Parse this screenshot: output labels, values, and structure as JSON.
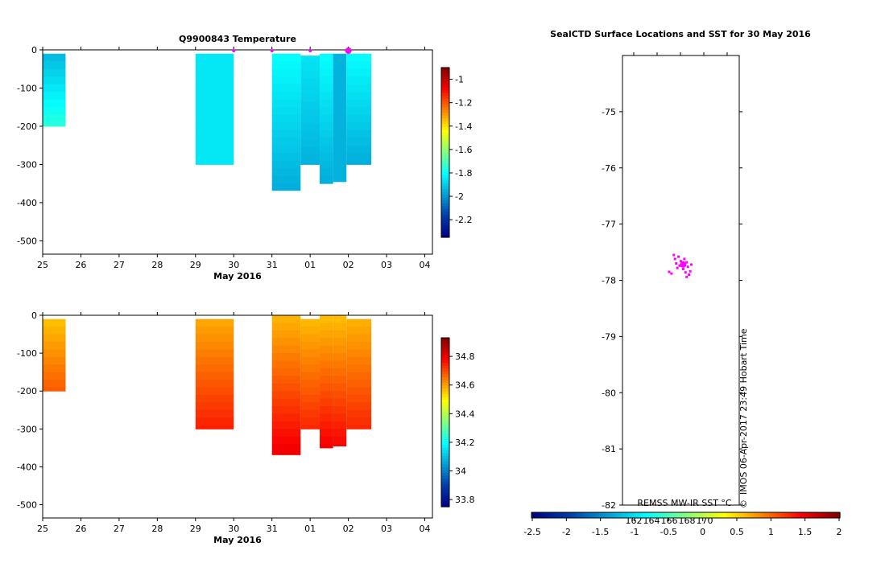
{
  "chart_data": [
    {
      "type": "heatmap",
      "title": "Q9900843  Temperature",
      "xlabel": "May 2016",
      "x_ticks": [
        "25",
        "26",
        "27",
        "28",
        "29",
        "30",
        "31",
        "01",
        "02",
        "03",
        "04"
      ],
      "y_ticks": [
        "0",
        "-100",
        "-200",
        "-300",
        "-400",
        "-500"
      ],
      "xlim": [
        25,
        35.2
      ],
      "ylim": [
        -535,
        0
      ],
      "colorbar": {
        "ticks": [
          "-1",
          "-1.2",
          "-1.4",
          "-1.6",
          "-1.8",
          "-2",
          "-2.2"
        ],
        "vmin": -2.35,
        "vmax": -0.9
      },
      "markers_days": [
        30,
        31,
        32,
        33
      ],
      "highlight_marker_day": 33,
      "profiles": [
        {
          "x0": 25.0,
          "x1": 25.6,
          "top": -10,
          "bottom": -200,
          "surface": -1.95,
          "deep": -1.75
        },
        {
          "x0": 29.0,
          "x1": 30.0,
          "top": -10,
          "bottom": -300,
          "surface": -1.85,
          "deep": -1.85
        },
        {
          "x0": 31.0,
          "x1": 31.75,
          "top": -10,
          "bottom": -368,
          "surface": -1.8,
          "deep": -1.96
        },
        {
          "x0": 31.75,
          "x1": 32.25,
          "top": -15,
          "bottom": -300,
          "surface": -1.85,
          "deep": -1.95
        },
        {
          "x0": 32.25,
          "x1": 32.6,
          "top": -10,
          "bottom": -350,
          "surface": -1.8,
          "deep": -1.96
        },
        {
          "x0": 32.6,
          "x1": 32.95,
          "top": -10,
          "bottom": -345,
          "surface": -1.95,
          "deep": -1.95
        },
        {
          "x0": 32.95,
          "x1": 33.6,
          "top": -10,
          "bottom": -300,
          "surface": -1.8,
          "deep": -1.96
        }
      ]
    },
    {
      "type": "heatmap",
      "title": "",
      "xlabel": "May 2016",
      "x_ticks": [
        "25",
        "26",
        "27",
        "28",
        "29",
        "30",
        "31",
        "01",
        "02",
        "03",
        "04"
      ],
      "y_ticks": [
        "0",
        "-100",
        "-200",
        "-300",
        "-400",
        "-500"
      ],
      "xlim": [
        25,
        35.2
      ],
      "ylim": [
        -535,
        0
      ],
      "colorbar": {
        "ticks": [
          "34.8",
          "34.6",
          "34.4",
          "34.2",
          "34",
          "33.8"
        ],
        "vmin": 33.75,
        "vmax": 34.93
      },
      "profiles": [
        {
          "x0": 25.0,
          "x1": 25.6,
          "top": -10,
          "bottom": -200,
          "surface": 34.55,
          "deep": 34.68
        },
        {
          "x0": 29.0,
          "x1": 30.0,
          "top": -10,
          "bottom": -300,
          "surface": 34.58,
          "deep": 34.75
        },
        {
          "x0": 31.0,
          "x1": 31.75,
          "top": 0,
          "bottom": -368,
          "surface": 34.57,
          "deep": 34.8
        },
        {
          "x0": 31.75,
          "x1": 32.25,
          "top": -10,
          "bottom": -300,
          "surface": 34.56,
          "deep": 34.74
        },
        {
          "x0": 32.25,
          "x1": 32.6,
          "top": 0,
          "bottom": -350,
          "surface": 34.56,
          "deep": 34.79
        },
        {
          "x0": 32.6,
          "x1": 32.95,
          "top": 0,
          "bottom": -345,
          "surface": 34.56,
          "deep": 34.78
        },
        {
          "x0": 32.95,
          "x1": 33.6,
          "top": -10,
          "bottom": -300,
          "surface": 34.57,
          "deep": 34.74
        }
      ]
    },
    {
      "type": "scatter",
      "title": "SealCTD Surface Locations and SST for 30 May 2016",
      "y_ticks": [
        "-75",
        "-76",
        "-77",
        "-78",
        "-79",
        "-80",
        "-81",
        "-82"
      ],
      "ylim": [
        -82,
        -74.0
      ],
      "x_ticks_top": [
        "162",
        "164",
        "166",
        "168",
        "170"
      ],
      "colorbar_label": "REMSS MW-IR SST °C",
      "colorbar": {
        "ticks": [
          "-2.5",
          "-2",
          "-1.5",
          "-1",
          "-0.5",
          "0",
          "0.5",
          "1",
          "1.5",
          "2"
        ],
        "vmin": -2.5,
        "vmax": 2
      },
      "side_text": "IMOS 06-Apr-2017 23:49 Hobart Time",
      "copyright_symbol": "©",
      "points": [
        [
          0.51,
          -77.72
        ],
        [
          0.53,
          -77.7
        ],
        [
          0.49,
          -77.74
        ],
        [
          0.55,
          -77.68
        ],
        [
          0.47,
          -77.78
        ],
        [
          0.52,
          -77.8
        ],
        [
          0.56,
          -77.76
        ],
        [
          0.5,
          -77.66
        ],
        [
          0.45,
          -77.62
        ],
        [
          0.44,
          -77.55
        ],
        [
          0.48,
          -77.58
        ],
        [
          0.58,
          -77.84
        ],
        [
          0.57,
          -77.9
        ],
        [
          0.54,
          -77.86
        ],
        [
          0.4,
          -77.85
        ],
        [
          0.42,
          -77.88
        ],
        [
          0.53,
          -77.62
        ],
        [
          0.59,
          -77.72
        ],
        [
          0.46,
          -77.7
        ],
        [
          0.55,
          -77.94
        ]
      ]
    }
  ]
}
